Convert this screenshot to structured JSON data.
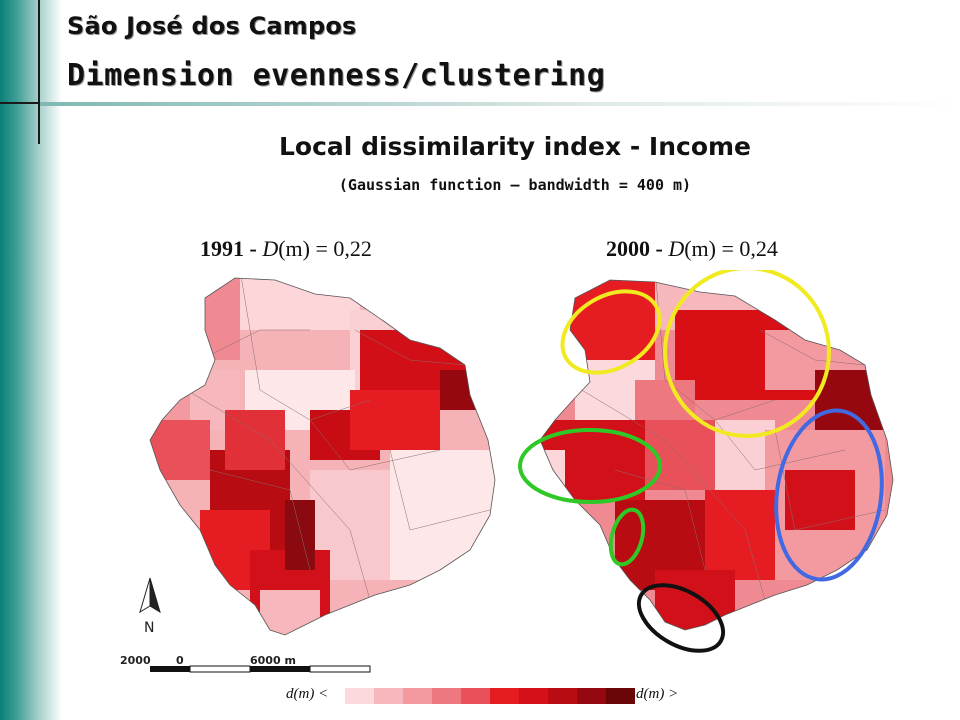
{
  "header": {
    "city": "São José dos Campos",
    "dimension": "Dimension evenness/clustering"
  },
  "main": {
    "title": "Local dissimilarity index - Income",
    "subtitle": "(Gaussian function – bandwidth = 400 m)"
  },
  "maps": [
    {
      "year": "1991 -",
      "value": "0,22"
    },
    {
      "year": "2000 -",
      "value": "0,24"
    }
  ],
  "formula": {
    "lhs": "D",
    "arg": "(m)",
    "eq": " = "
  },
  "legend": {
    "colors": [
      "#fbd9dc",
      "#f7b8bd",
      "#f39aa1",
      "#ee7880",
      "#e8505a",
      "#e51c22",
      "#d51018",
      "#b80b12",
      "#950810",
      "#6a0508"
    ],
    "left_label": "d",
    "right_label": "d",
    "arg": "(m)",
    "left_sym": "<",
    "right_sym": ">"
  },
  "scale": {
    "left": "2000",
    "mid": "0",
    "right": "6000 m"
  },
  "north": "N",
  "highlight_colors": [
    "#f2ea20",
    "#2fc826",
    "#4169e1",
    "#111111"
  ]
}
